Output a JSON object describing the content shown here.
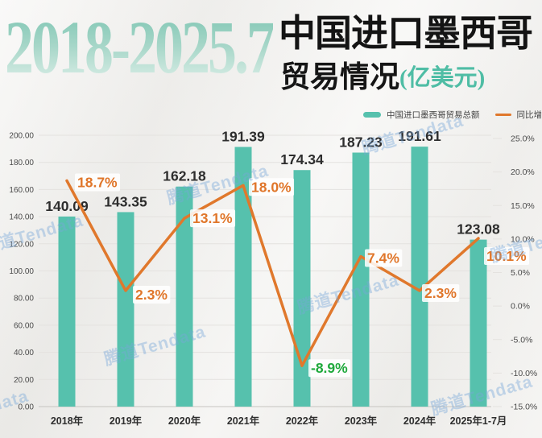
{
  "title": {
    "range": "2018-2025.7",
    "main": "中国进口墨西哥",
    "sub": "贸易情况",
    "unit": "(亿美元)"
  },
  "watermark": {
    "text": "腾道Tendata"
  },
  "legend": [
    {
      "label": "中国进口墨西哥贸易总额",
      "type": "bar",
      "color": "#56c1ad"
    },
    {
      "label": "同比增长率",
      "type": "line",
      "color": "#e0782c"
    }
  ],
  "chart_data": {
    "type": "bar",
    "title": "2018-2025.7 中国进口墨西哥贸易情况(亿美元)",
    "categories": [
      "2018年",
      "2019年",
      "2020年",
      "2021年",
      "2022年",
      "2023年",
      "2024年",
      "2025年1-7月"
    ],
    "series": [
      {
        "name": "中国进口墨西哥贸易总额",
        "kind": "bar",
        "axis": "left",
        "color": "#56c1ad",
        "values": [
          140.09,
          143.35,
          162.18,
          191.39,
          174.34,
          187.23,
          191.61,
          123.08
        ],
        "labels": [
          "140.09",
          "143.35",
          "162.18",
          "191.39",
          "174.34",
          "187.23",
          "191.61",
          "123.08"
        ]
      },
      {
        "name": "同比增长率",
        "kind": "line",
        "axis": "right",
        "color": "#e0782c",
        "values": [
          18.7,
          2.3,
          13.1,
          18.0,
          -8.9,
          7.4,
          2.3,
          10.1
        ],
        "labels": [
          "18.7%",
          "2.3%",
          "13.1%",
          "18.0%",
          "-8.9%",
          "7.4%",
          "2.3%",
          "10.1%"
        ],
        "label_colors": [
          "#e0762a",
          "#e0762a",
          "#e0762a",
          "#e0762a",
          "#1fa93c",
          "#e0762a",
          "#e0762a",
          "#e0762a"
        ]
      }
    ],
    "left_axis": {
      "min": 0,
      "max": 200,
      "step": 20,
      "labels": [
        "0.00",
        "20.00",
        "40.00",
        "60.00",
        "80.00",
        "100.00",
        "120.00",
        "140.00",
        "160.00",
        "180.00",
        "200.00"
      ]
    },
    "right_axis": {
      "min": -15,
      "max": 25,
      "step": 5,
      "labels": [
        "-15.0%",
        "-10.0%",
        "-5.0%",
        "0.0%",
        "5.0%",
        "10.0%",
        "15.0%",
        "20.0%",
        "25.0%"
      ]
    },
    "grid": true,
    "legend_position": "top-right"
  },
  "colors": {
    "bar": "#56c1ad",
    "line": "#e0782c",
    "negative_label": "#1fa93c",
    "value_label": "#2d2d2d",
    "axis_text": "#4a4a4a",
    "category_text": "#2f2f2f",
    "grid_line": "#e4e2df",
    "axis_line": "#c6c4c0",
    "background": "#f2f1ee",
    "watermark": "#78a6d8",
    "title_accent": "#4fbda5",
    "title_gradient_start": "#7fc6b3",
    "title_gradient_end": "#dcefe8"
  }
}
